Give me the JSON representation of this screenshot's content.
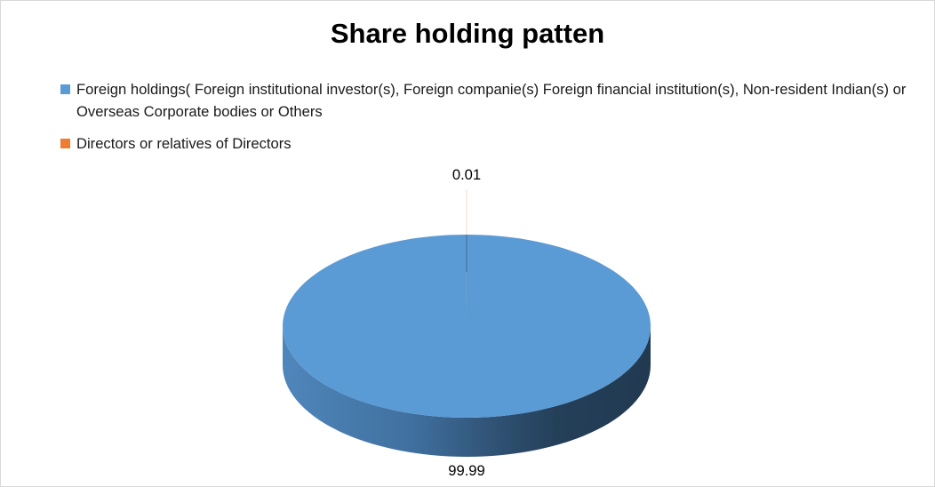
{
  "chart_data": {
    "type": "pie",
    "style": "3d",
    "title": "Share holding patten",
    "legend_position": "top",
    "slices": [
      {
        "name": "Foreign holdings( Foreign institutional investor(s), Foreign companie(s) Foreign financial institution(s), Non-resident Indian(s) or Overseas Corporate bodies or Others",
        "value": 99.99,
        "label": "99.99",
        "color": "#5b9bd5"
      },
      {
        "name": "Directors or relatives of Directors",
        "value": 0.01,
        "label": "0.01",
        "color": "#ed7d31"
      }
    ]
  }
}
